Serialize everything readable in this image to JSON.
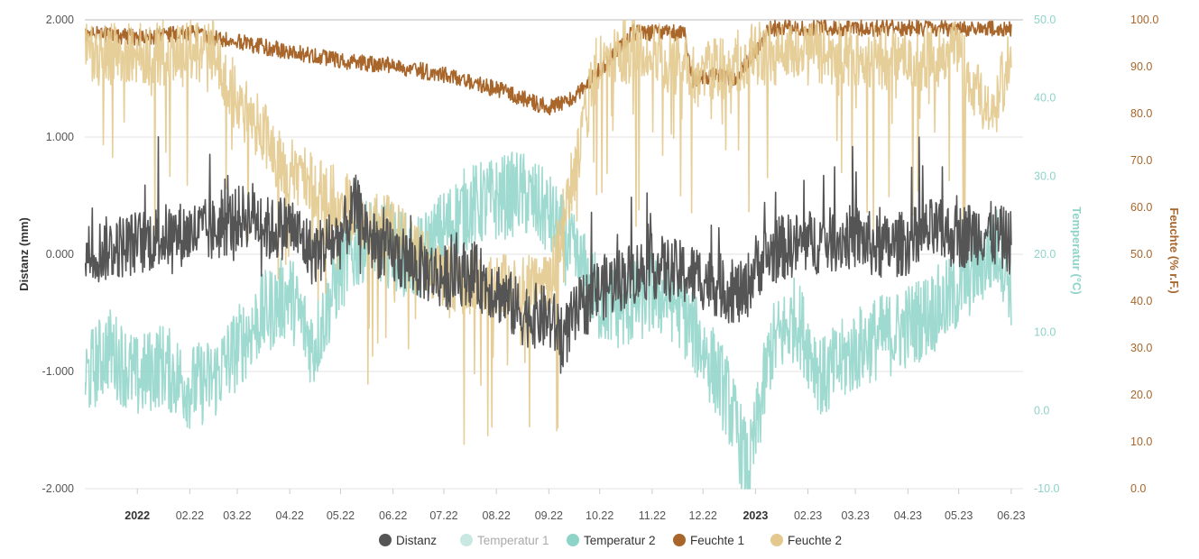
{
  "chart_data": {
    "type": "line",
    "x_start": "2021-12-01",
    "x_end": "2023-06-08",
    "x_ticks": [
      {
        "date": "2022-01-01",
        "label": "2022",
        "bold": true
      },
      {
        "date": "2022-02-01",
        "label": "02.22"
      },
      {
        "date": "2022-03-01",
        "label": "03.22"
      },
      {
        "date": "2022-04-01",
        "label": "04.22"
      },
      {
        "date": "2022-05-01",
        "label": "05.22"
      },
      {
        "date": "2022-06-01",
        "label": "06.22"
      },
      {
        "date": "2022-07-01",
        "label": "07.22"
      },
      {
        "date": "2022-08-01",
        "label": "08.22"
      },
      {
        "date": "2022-09-01",
        "label": "09.22"
      },
      {
        "date": "2022-10-01",
        "label": "10.22"
      },
      {
        "date": "2022-11-01",
        "label": "11.22"
      },
      {
        "date": "2022-12-01",
        "label": "12.22"
      },
      {
        "date": "2023-01-01",
        "label": "2023",
        "bold": true
      },
      {
        "date": "2023-02-01",
        "label": "02.23"
      },
      {
        "date": "2023-03-01",
        "label": "03.23"
      },
      {
        "date": "2023-04-01",
        "label": "04.23"
      },
      {
        "date": "2023-05-01",
        "label": "05.23"
      },
      {
        "date": "2023-06-01",
        "label": "06.23"
      }
    ],
    "y_axes": [
      {
        "id": "distanz",
        "label": "Distanz (mm)",
        "min": -2,
        "max": 2,
        "ticks": [
          "2.000",
          "1.000",
          "0.000",
          "-1.000",
          "-2.000"
        ],
        "color": "#333333"
      },
      {
        "id": "temp",
        "label": "Temperatur (°C)",
        "min": -10,
        "max": 50,
        "ticks": [
          "50.0",
          "40.0",
          "30.0",
          "20.0",
          "10.0",
          "0.0",
          "-10.0"
        ],
        "color": "#8ed3c8"
      },
      {
        "id": "feuchte",
        "label": "Feuchte (% r.F.)",
        "min": 0,
        "max": 100,
        "ticks": [
          "100.0",
          "90.0",
          "80.0",
          "70.0",
          "60.0",
          "50.0",
          "40.0",
          "30.0",
          "20.0",
          "10.0",
          "0.0"
        ],
        "color": "#a8662b"
      }
    ],
    "grid": true,
    "legend_position": "bottom",
    "series": [
      {
        "name": "Distanz",
        "axis": "distanz",
        "color": "#555555",
        "visible": true,
        "x": [
          "2021-12-01",
          "2021-12-15",
          "2022-01-01",
          "2022-01-15",
          "2022-02-01",
          "2022-02-15",
          "2022-03-01",
          "2022-03-10",
          "2022-03-20",
          "2022-04-01",
          "2022-04-15",
          "2022-05-01",
          "2022-05-10",
          "2022-05-20",
          "2022-06-01",
          "2022-06-15",
          "2022-07-01",
          "2022-07-15",
          "2022-08-01",
          "2022-08-15",
          "2022-09-01",
          "2022-09-10",
          "2022-09-20",
          "2022-10-01",
          "2022-10-15",
          "2022-11-01",
          "2022-11-15",
          "2022-12-01",
          "2022-12-15",
          "2022-12-25",
          "2023-01-01",
          "2023-01-15",
          "2023-02-01",
          "2023-02-15",
          "2023-03-01",
          "2023-03-15",
          "2023-04-01",
          "2023-04-15",
          "2023-05-01",
          "2023-05-15",
          "2023-06-01"
        ],
        "y": [
          0.0,
          0.05,
          0.1,
          0.15,
          0.18,
          0.2,
          0.3,
          0.35,
          0.2,
          0.25,
          0.0,
          0.15,
          0.4,
          0.1,
          0.0,
          -0.1,
          -0.2,
          -0.15,
          -0.3,
          -0.5,
          -0.55,
          -0.7,
          -0.45,
          -0.3,
          -0.2,
          -0.1,
          -0.15,
          -0.2,
          -0.3,
          -0.35,
          -0.1,
          0.05,
          0.1,
          0.12,
          0.15,
          0.05,
          0.1,
          0.2,
          0.15,
          0.2,
          0.1
        ],
        "amplitude": 0.28
      },
      {
        "name": "Temperatur 1",
        "axis": "temp",
        "color": "#c9e8e2",
        "visible": false,
        "x": [],
        "y": []
      },
      {
        "name": "Temperatur 2",
        "axis": "temp",
        "color": "#8ed3c8",
        "visible": true,
        "x": [
          "2021-12-01",
          "2021-12-15",
          "2022-01-01",
          "2022-01-15",
          "2022-02-01",
          "2022-02-15",
          "2022-03-01",
          "2022-03-15",
          "2022-04-01",
          "2022-04-15",
          "2022-05-01",
          "2022-05-15",
          "2022-06-01",
          "2022-06-15",
          "2022-07-01",
          "2022-07-15",
          "2022-08-01",
          "2022-08-15",
          "2022-09-01",
          "2022-09-15",
          "2022-10-01",
          "2022-10-15",
          "2022-11-01",
          "2022-11-15",
          "2022-12-01",
          "2022-12-15",
          "2022-12-28",
          "2023-01-10",
          "2023-01-25",
          "2023-02-10",
          "2023-02-25",
          "2023-03-10",
          "2023-03-25",
          "2023-04-10",
          "2023-04-25",
          "2023-05-10",
          "2023-05-25",
          "2023-06-01"
        ],
        "y": [
          4,
          8,
          4,
          6,
          3,
          4,
          8,
          12,
          15,
          8,
          18,
          22,
          21,
          19,
          23,
          26,
          27,
          28,
          25,
          20,
          14,
          13,
          15,
          14,
          8,
          2,
          -8,
          8,
          12,
          4,
          7,
          9,
          10,
          12,
          14,
          18,
          21,
          16
        ],
        "amplitude": 5.5
      },
      {
        "name": "Feuchte 1",
        "axis": "feuchte",
        "color": "#a8662b",
        "visible": true,
        "x": [
          "2021-12-01",
          "2022-01-01",
          "2022-02-01",
          "2022-03-01",
          "2022-04-01",
          "2022-05-01",
          "2022-06-01",
          "2022-07-01",
          "2022-08-01",
          "2022-09-01",
          "2022-09-15",
          "2022-10-01",
          "2022-10-20",
          "2022-11-20",
          "2022-11-25",
          "2022-12-10",
          "2022-12-20",
          "2023-01-10",
          "2023-06-01"
        ],
        "y": [
          99,
          98,
          99,
          97,
          95,
          93,
          92,
          90,
          87,
          83,
          85,
          91,
          99,
          99,
          89,
          90,
          89,
          100,
          100
        ],
        "amplitude": 3.5
      },
      {
        "name": "Feuchte 2",
        "axis": "feuchte",
        "color": "#e3c98e",
        "visible": true,
        "x": [
          "2021-12-01",
          "2022-02-15",
          "2022-03-01",
          "2022-04-01",
          "2022-05-01",
          "2022-06-01",
          "2022-07-01",
          "2022-08-01",
          "2022-09-01",
          "2022-10-01",
          "2022-11-01",
          "2022-12-01",
          "2023-01-01",
          "2023-03-01",
          "2023-04-01",
          "2023-05-01",
          "2023-05-20",
          "2023-06-01"
        ],
        "y": [
          100,
          100,
          90,
          75,
          68,
          62,
          52,
          50,
          50,
          100,
          100,
          95,
          100,
          100,
          98,
          100,
          85,
          100
        ],
        "amplitude": 14
      }
    ]
  }
}
